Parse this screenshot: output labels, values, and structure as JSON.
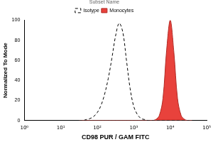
{
  "chart_data": {
    "type": "line",
    "x_label": "CD98 PUR / GAM FITC",
    "y_label": "Normalized To Mode",
    "legend_title": "Subset Name",
    "legend": "top",
    "log": "x",
    "grid": false,
    "xlim": [
      1,
      100000
    ],
    "xticks": [
      {
        "value": 1,
        "label": "10⁰"
      },
      {
        "value": 10,
        "label": "10¹"
      },
      {
        "value": 100,
        "label": "10²"
      },
      {
        "value": 1000,
        "label": "10³"
      },
      {
        "value": 10000,
        "label": "10⁴"
      },
      {
        "value": 100000,
        "label": "10⁵"
      }
    ],
    "ylim": [
      0,
      100
    ],
    "yticks": [
      0,
      20,
      40,
      60,
      80,
      100
    ],
    "x": [
      32,
      40,
      50,
      63,
      79,
      100,
      126,
      158,
      200,
      251,
      316,
      398,
      501,
      631,
      794,
      1000,
      1259,
      1585,
      1995,
      2512,
      3162,
      3981,
      5012,
      6310,
      7943,
      10000,
      12589,
      15849,
      19953,
      25119,
      31623,
      39811
    ],
    "series": [
      {
        "name": "Isotype",
        "color": "#000000",
        "line_style": "dashed",
        "values": [
          0,
          0,
          1,
          2,
          4,
          8,
          15,
          26,
          42,
          62,
          84,
          97,
          88,
          60,
          32,
          14,
          6,
          2,
          1,
          0,
          0,
          0,
          0,
          0,
          0,
          0,
          0,
          0,
          0,
          0,
          0,
          0
        ]
      },
      {
        "name": "Monocytes",
        "color": "#e8423c",
        "line_style": "solid",
        "values": [
          0,
          0,
          0,
          0,
          0,
          0,
          0,
          0,
          0,
          0,
          0,
          0,
          0,
          0,
          0,
          0,
          0,
          0,
          0,
          0,
          0,
          1,
          5,
          22,
          70,
          100,
          68,
          22,
          5,
          1,
          0,
          0
        ]
      }
    ]
  }
}
